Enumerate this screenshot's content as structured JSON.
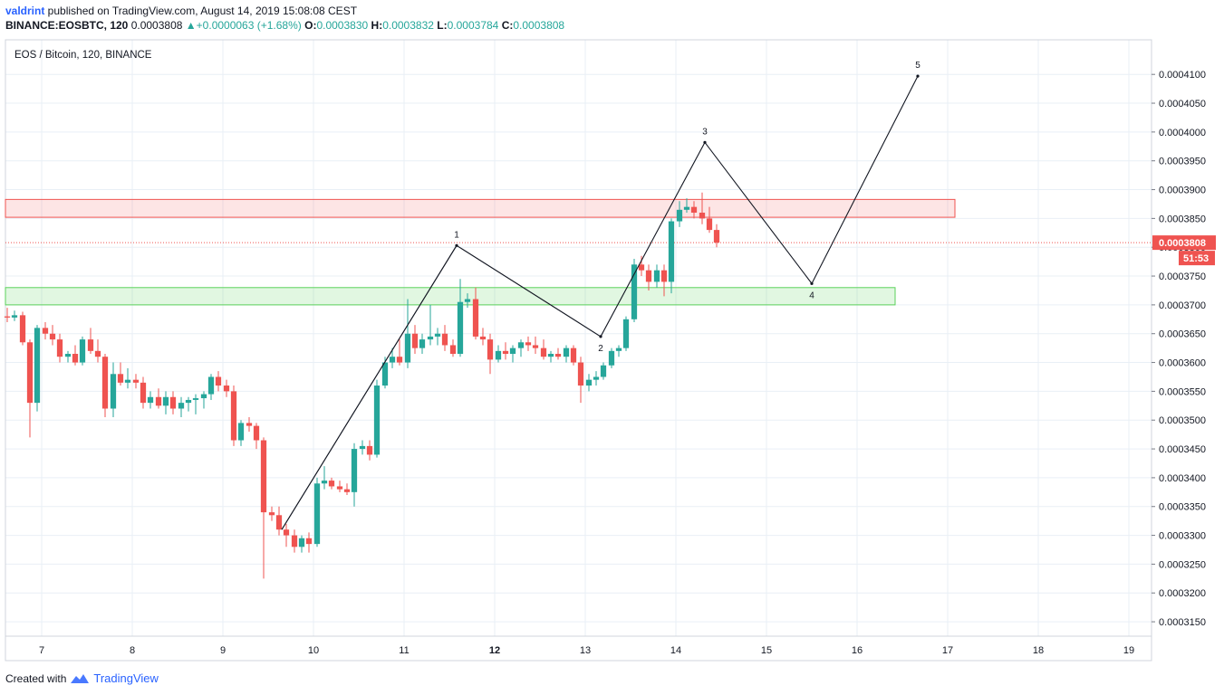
{
  "header": {
    "author": "valdrint",
    "published": " published on TradingView.com, August 14, 2019 15:08:08 CEST",
    "symbol": "BINANCE:EOSBTC, 120",
    "last": "0.0003808",
    "change": "+0.0000063 (+1.68%)",
    "open_label": "O:",
    "open": "0.0003830",
    "high_label": "H:",
    "high": "0.0003832",
    "low_label": "L:",
    "low": "0.0003784",
    "close_label": "C:",
    "close": "0.0003808"
  },
  "footer": {
    "created_with": "Created with",
    "brand": "TradingView"
  },
  "colors": {
    "up": "#26a69a",
    "down": "#ef5350",
    "grid": "#e9eff6",
    "resistance": "#ef5350",
    "support": "#5bd25b"
  },
  "chart_data": {
    "type": "candlestick",
    "title": "EOS / Bitcoin, 120, BINANCE",
    "ylim": [
      0.0003125,
      0.000416
    ],
    "xlim": [
      6.6,
      19.25
    ],
    "x_ticks": [
      7,
      8,
      9,
      10,
      11,
      12,
      13,
      14,
      15,
      16,
      17,
      18,
      19
    ],
    "x_tick_labels": [
      "7",
      "8",
      "9",
      "10",
      "11",
      "12",
      "13",
      "14",
      "15",
      "16",
      "17",
      "18",
      "19"
    ],
    "bold_ticks": [
      "12"
    ],
    "y_ticks": [
      "0.0003150",
      "0.0003200",
      "0.0003250",
      "0.0003300",
      "0.0003350",
      "0.0003400",
      "0.0003450",
      "0.0003500",
      "0.0003550",
      "0.0003600",
      "0.0003650",
      "0.0003700",
      "0.0003750",
      "0.0003800",
      "0.0003850",
      "0.0003900",
      "0.0003950",
      "0.0004000",
      "0.0004050",
      "0.0004100"
    ],
    "last_price": {
      "value": 0.0003808,
      "label": "0.0003808",
      "countdown": "51:53"
    },
    "zones": [
      {
        "name": "resistance",
        "from": 0.0003852,
        "to": 0.0003883,
        "x_end": 17.08
      },
      {
        "name": "support",
        "from": 0.00037,
        "to": 0.000373,
        "x_end": 16.42
      }
    ],
    "wave_path": [
      {
        "x": 9.65,
        "y": 0.000331,
        "label": ""
      },
      {
        "x": 11.58,
        "y": 0.0003803,
        "label": "1"
      },
      {
        "x": 13.17,
        "y": 0.0003645,
        "label": "2"
      },
      {
        "x": 14.32,
        "y": 0.0003982,
        "label": "3"
      },
      {
        "x": 15.5,
        "y": 0.0003737,
        "label": "4"
      },
      {
        "x": 16.67,
        "y": 0.0004097,
        "label": "5"
      }
    ],
    "thin_line": [
      [
        9.65,
        0.000331
      ],
      [
        11.58,
        0.0003803
      ]
    ],
    "candles": [
      [
        6.62,
        0.000368,
        0.0003695,
        0.000367,
        0.0003678
      ],
      [
        6.7,
        0.0003678,
        0.000369,
        0.0003672,
        0.0003682
      ],
      [
        6.79,
        0.0003682,
        0.0003688,
        0.000363,
        0.0003635
      ],
      [
        6.87,
        0.0003635,
        0.000364,
        0.000347,
        0.000353
      ],
      [
        6.95,
        0.000353,
        0.0003665,
        0.0003515,
        0.000366
      ],
      [
        7.04,
        0.000366,
        0.000367,
        0.000364,
        0.000365
      ],
      [
        7.12,
        0.000365,
        0.0003665,
        0.000363,
        0.000364
      ],
      [
        7.2,
        0.000364,
        0.000365,
        0.00036,
        0.000361
      ],
      [
        7.29,
        0.000361,
        0.000362,
        0.00036,
        0.0003615
      ],
      [
        7.37,
        0.0003615,
        0.000363,
        0.0003595,
        0.00036
      ],
      [
        7.45,
        0.00036,
        0.0003645,
        0.0003595,
        0.000364
      ],
      [
        7.54,
        0.000364,
        0.000366,
        0.0003615,
        0.000362
      ],
      [
        7.62,
        0.000362,
        0.000364,
        0.00036,
        0.000361
      ],
      [
        7.7,
        0.000361,
        0.0003615,
        0.0003505,
        0.000352
      ],
      [
        7.79,
        0.000352,
        0.00036,
        0.0003505,
        0.000358
      ],
      [
        7.87,
        0.000358,
        0.00036,
        0.000356,
        0.0003565
      ],
      [
        7.95,
        0.0003565,
        0.000359,
        0.0003555,
        0.000357
      ],
      [
        8.04,
        0.000357,
        0.000358,
        0.0003555,
        0.0003565
      ],
      [
        8.12,
        0.0003565,
        0.0003575,
        0.000352,
        0.000353
      ],
      [
        8.2,
        0.000353,
        0.000355,
        0.000352,
        0.000354
      ],
      [
        8.29,
        0.000354,
        0.0003555,
        0.000352,
        0.0003525
      ],
      [
        8.37,
        0.0003525,
        0.000355,
        0.000351,
        0.000354
      ],
      [
        8.45,
        0.000354,
        0.000355,
        0.000351,
        0.000352
      ],
      [
        8.54,
        0.000352,
        0.000354,
        0.0003505,
        0.000353
      ],
      [
        8.62,
        0.000353,
        0.000354,
        0.0003515,
        0.0003535
      ],
      [
        8.7,
        0.0003535,
        0.0003545,
        0.000351,
        0.0003538
      ],
      [
        8.79,
        0.0003538,
        0.000355,
        0.000352,
        0.0003545
      ],
      [
        8.87,
        0.0003545,
        0.000358,
        0.0003535,
        0.0003575
      ],
      [
        8.95,
        0.0003575,
        0.0003585,
        0.000355,
        0.000356
      ],
      [
        9.04,
        0.000356,
        0.000357,
        0.000354,
        0.000355
      ],
      [
        9.12,
        0.000355,
        0.000356,
        0.0003455,
        0.0003465
      ],
      [
        9.2,
        0.0003465,
        0.00035,
        0.0003455,
        0.0003495
      ],
      [
        9.29,
        0.0003495,
        0.0003505,
        0.000348,
        0.000349
      ],
      [
        9.37,
        0.000349,
        0.0003495,
        0.000345,
        0.0003465
      ],
      [
        9.45,
        0.0003465,
        0.000347,
        0.0003225,
        0.000334
      ],
      [
        9.54,
        0.000334,
        0.000335,
        0.0003325,
        0.0003335
      ],
      [
        9.62,
        0.0003335,
        0.000335,
        0.00033,
        0.000331
      ],
      [
        9.7,
        0.000331,
        0.000332,
        0.000328,
        0.00033
      ],
      [
        9.79,
        0.00033,
        0.000331,
        0.000327,
        0.000328
      ],
      [
        9.87,
        0.000328,
        0.00033,
        0.000327,
        0.0003295
      ],
      [
        9.95,
        0.0003295,
        0.0003305,
        0.000327,
        0.0003285
      ],
      [
        10.04,
        0.0003285,
        0.00034,
        0.000328,
        0.000339
      ],
      [
        10.12,
        0.000339,
        0.000342,
        0.000338,
        0.0003395
      ],
      [
        10.2,
        0.0003395,
        0.00034,
        0.000338,
        0.0003385
      ],
      [
        10.29,
        0.0003385,
        0.0003395,
        0.0003375,
        0.000338
      ],
      [
        10.37,
        0.000338,
        0.000339,
        0.000337,
        0.0003375
      ],
      [
        10.45,
        0.0003375,
        0.000346,
        0.000335,
        0.000345
      ],
      [
        10.54,
        0.000345,
        0.0003465,
        0.000344,
        0.0003455
      ],
      [
        10.62,
        0.0003455,
        0.0003465,
        0.000343,
        0.000344
      ],
      [
        10.7,
        0.000344,
        0.000357,
        0.0003435,
        0.000356
      ],
      [
        10.79,
        0.000356,
        0.000361,
        0.0003555,
        0.00036
      ],
      [
        10.87,
        0.00036,
        0.0003625,
        0.000359,
        0.000361
      ],
      [
        10.95,
        0.000361,
        0.000364,
        0.0003595,
        0.00036
      ],
      [
        11.04,
        0.00036,
        0.000371,
        0.000359,
        0.000365
      ],
      [
        11.12,
        0.000365,
        0.0003665,
        0.0003615,
        0.0003625
      ],
      [
        11.2,
        0.0003625,
        0.000365,
        0.0003615,
        0.000364
      ],
      [
        11.29,
        0.000364,
        0.00037,
        0.000363,
        0.0003645
      ],
      [
        11.37,
        0.0003645,
        0.000366,
        0.000363,
        0.000365
      ],
      [
        11.45,
        0.000365,
        0.0003665,
        0.000362,
        0.000363
      ],
      [
        11.54,
        0.000363,
        0.000364,
        0.000361,
        0.0003615
      ],
      [
        11.62,
        0.0003615,
        0.0003745,
        0.000361,
        0.0003705
      ],
      [
        11.7,
        0.0003705,
        0.000372,
        0.0003695,
        0.000371
      ],
      [
        11.79,
        0.000371,
        0.000373,
        0.000364,
        0.0003645
      ],
      [
        11.87,
        0.0003645,
        0.000366,
        0.000363,
        0.000364
      ],
      [
        11.95,
        0.000364,
        0.000365,
        0.000358,
        0.0003605
      ],
      [
        12.04,
        0.0003605,
        0.000363,
        0.00036,
        0.000362
      ],
      [
        12.12,
        0.000362,
        0.0003635,
        0.0003605,
        0.0003615
      ],
      [
        12.2,
        0.0003615,
        0.000363,
        0.00036,
        0.0003625
      ],
      [
        12.29,
        0.0003625,
        0.000364,
        0.000361,
        0.0003635
      ],
      [
        12.37,
        0.0003635,
        0.0003645,
        0.000362,
        0.000363
      ],
      [
        12.45,
        0.000363,
        0.0003645,
        0.0003615,
        0.0003625
      ],
      [
        12.54,
        0.0003625,
        0.000364,
        0.0003605,
        0.000361
      ],
      [
        12.62,
        0.000361,
        0.000362,
        0.00036,
        0.0003615
      ],
      [
        12.7,
        0.0003615,
        0.0003625,
        0.0003605,
        0.000361
      ],
      [
        12.79,
        0.000361,
        0.000363,
        0.00036,
        0.0003625
      ],
      [
        12.87,
        0.0003625,
        0.000363,
        0.0003595,
        0.00036
      ],
      [
        12.95,
        0.00036,
        0.000361,
        0.000353,
        0.000356
      ],
      [
        13.04,
        0.000356,
        0.000358,
        0.000355,
        0.000357
      ],
      [
        13.12,
        0.000357,
        0.0003585,
        0.000356,
        0.0003575
      ],
      [
        13.2,
        0.0003575,
        0.00036,
        0.000357,
        0.0003595
      ],
      [
        13.29,
        0.0003595,
        0.0003625,
        0.000359,
        0.000362
      ],
      [
        13.37,
        0.000362,
        0.000363,
        0.000361,
        0.0003625
      ],
      [
        13.45,
        0.0003625,
        0.000368,
        0.000362,
        0.0003675
      ],
      [
        13.54,
        0.0003675,
        0.000378,
        0.000367,
        0.000377
      ],
      [
        13.62,
        0.000377,
        0.0003785,
        0.000375,
        0.000376
      ],
      [
        13.7,
        0.000376,
        0.000377,
        0.0003725,
        0.000374
      ],
      [
        13.79,
        0.000374,
        0.000377,
        0.000373,
        0.000376
      ],
      [
        13.87,
        0.000376,
        0.000377,
        0.0003715,
        0.000374
      ],
      [
        13.95,
        0.000374,
        0.000385,
        0.000372,
        0.0003845
      ],
      [
        14.04,
        0.0003845,
        0.000388,
        0.0003835,
        0.0003865
      ],
      [
        14.12,
        0.0003865,
        0.0003885,
        0.000386,
        0.000387
      ],
      [
        14.2,
        0.000387,
        0.000388,
        0.000385,
        0.000386
      ],
      [
        14.29,
        0.000386,
        0.0003895,
        0.000384,
        0.000385
      ],
      [
        14.37,
        0.000385,
        0.000387,
        0.0003825,
        0.000383
      ],
      [
        14.45,
        0.000383,
        0.000384,
        0.00038,
        0.0003808
      ]
    ]
  }
}
